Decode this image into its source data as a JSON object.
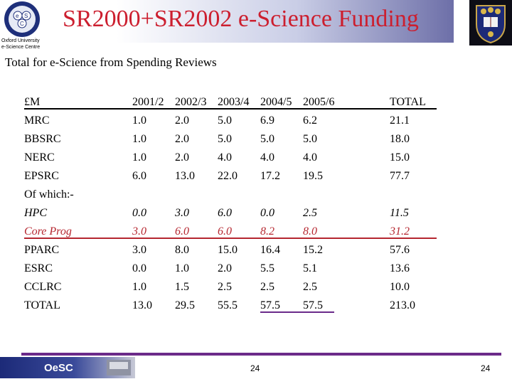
{
  "header": {
    "title": "SR2000+SR2002 e-Science Funding",
    "logo_text": "e S C",
    "org_name": "Oxford University\ne-Science Centre"
  },
  "subtitle": "Total for e-Science from Spending Reviews",
  "table": {
    "header": [
      "£M",
      "2001/2",
      "2002/3",
      "2003/4",
      "2004/5",
      "2005/6",
      "TOTAL"
    ],
    "rows": [
      [
        "MRC",
        "1.0",
        "2.0",
        "5.0",
        "6.9",
        "6.2",
        "21.1"
      ],
      [
        "BBSRC",
        "1.0",
        "2.0",
        "5.0",
        "5.0",
        "5.0",
        "18.0"
      ],
      [
        "NERC",
        "1.0",
        "2.0",
        "4.0",
        "4.0",
        "4.0",
        "15.0"
      ],
      [
        "EPSRC",
        "6.0",
        "13.0",
        "22.0",
        "17.2",
        "19.5",
        "77.7"
      ],
      [
        "Of which:-",
        "",
        "",
        "",
        "",
        "",
        ""
      ],
      [
        "HPC",
        "0.0",
        "3.0",
        "6.0",
        "0.0",
        "2.5",
        "11.5"
      ],
      [
        "Core Prog",
        "3.0",
        "6.0",
        "6.0",
        "8.2",
        "8.0",
        "31.2"
      ],
      [
        "PPARC",
        "3.0",
        "8.0",
        "15.0",
        "16.4",
        "15.2",
        "57.6"
      ],
      [
        "ESRC",
        "0.0",
        "1.0",
        "2.0",
        "5.5",
        "5.1",
        "13.6"
      ],
      [
        "CCLRC",
        "1.0",
        "1.5",
        "2.5",
        "2.5",
        "2.5",
        "10.0"
      ],
      [
        "TOTAL",
        "13.0",
        "29.5",
        "55.5",
        "57.5",
        "57.5",
        "213.0"
      ]
    ]
  },
  "footer": {
    "logo_text": "OeSC",
    "page_number_center": "24",
    "page_number_right": "24"
  },
  "colors": {
    "title": "#cc1f2f",
    "core_prog_row": "#b5262f",
    "footer_rule": "#6b2a89"
  }
}
